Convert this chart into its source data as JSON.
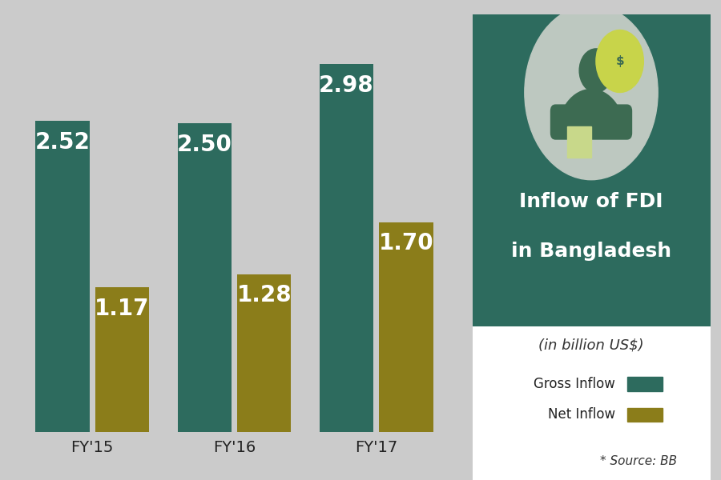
{
  "categories": [
    "FY'15",
    "FY'16",
    "FY'17"
  ],
  "gross_inflow": [
    2.52,
    2.5,
    2.98
  ],
  "net_inflow": [
    1.17,
    1.28,
    1.7
  ],
  "gross_color": "#2d6b5e",
  "net_color": "#8b7d1a",
  "background_color": "#cbcbcb",
  "chart_bg": "#c8c8c8",
  "panel_color": "#2d6b5e",
  "panel_bottom_color": "#ffffff",
  "title_line1": "Inflow of FDI",
  "title_line2": "in Bangladesh",
  "subtitle": "(in billion US$)",
  "source": "* Source: BB",
  "legend_gross": "Gross Inflow",
  "legend_net": "Net Inflow",
  "bar_width": 0.38,
  "bar_gap": 0.04,
  "ylim": [
    0,
    3.5
  ],
  "label_fontsize": 20,
  "tick_fontsize": 14,
  "icon_circle_color": "#bdc8c0",
  "icon_color": "#3d6b52",
  "coin_color": "#c8d44a",
  "coin_outline": "#3d6b52"
}
